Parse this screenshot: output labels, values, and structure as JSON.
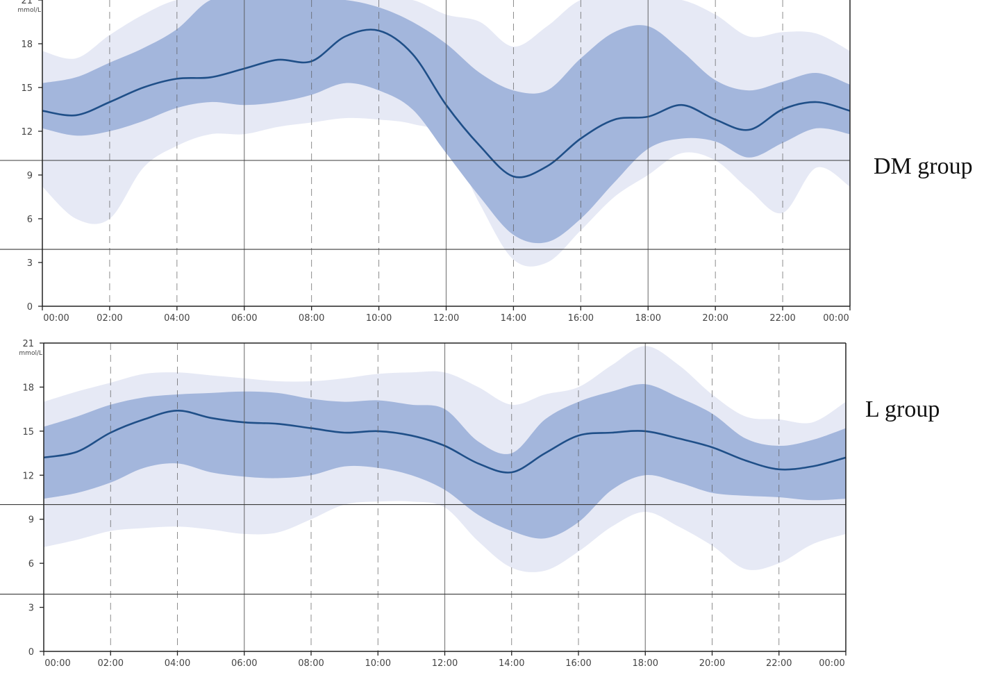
{
  "colors": {
    "outer_band": "#e6e9f5",
    "inner_band": "#a3b6dc",
    "median_line": "#1f4f88",
    "target_line": "#3a3a3a",
    "grid_line": "#555555"
  },
  "chart_data": [
    {
      "type": "area",
      "group_label": "DM group",
      "ylabel": "mmol/L",
      "ylim": [
        0,
        21
      ],
      "yticks": [
        "0",
        "3",
        "6",
        "9",
        "12",
        "15",
        "18",
        "21"
      ],
      "xticks": [
        "00:00",
        "02:00",
        "04:00",
        "06:00",
        "08:00",
        "10:00",
        "12:00",
        "14:00",
        "16:00",
        "18:00",
        "20:00",
        "22:00",
        "00:00"
      ],
      "target_range": [
        3.9,
        10
      ],
      "x": [
        0,
        1,
        2,
        3,
        4,
        5,
        6,
        7,
        8,
        9,
        10,
        11,
        12,
        13,
        14,
        15,
        16,
        17,
        18,
        19,
        20,
        21,
        22,
        23,
        24
      ],
      "series": [
        {
          "name": "",
          "role": "outer_low",
          "values": [
            8.2,
            6.0,
            6.0,
            9.5,
            11.0,
            11.8,
            11.8,
            12.3,
            12.6,
            12.9,
            12.8,
            12.5,
            11.5,
            7.0,
            3.2,
            3.0,
            5.2,
            7.5,
            9.0,
            10.5,
            10.0,
            8.0,
            6.4,
            9.5,
            8.2
          ]
        },
        {
          "name": "",
          "role": "inner_low",
          "values": [
            12.2,
            11.7,
            12.0,
            12.7,
            13.6,
            14.0,
            13.8,
            14.0,
            14.5,
            15.3,
            14.8,
            13.5,
            10.5,
            7.5,
            4.9,
            4.4,
            6.0,
            8.5,
            10.8,
            11.5,
            11.3,
            10.2,
            11.2,
            12.2,
            11.8
          ]
        },
        {
          "name": "",
          "role": "median",
          "values": [
            13.4,
            13.1,
            14.0,
            15.0,
            15.6,
            15.7,
            16.3,
            16.9,
            16.8,
            18.5,
            18.9,
            17.3,
            13.8,
            11.0,
            8.9,
            9.6,
            11.5,
            12.8,
            13.0,
            13.8,
            12.8,
            12.1,
            13.5,
            14.0,
            13.4
          ]
        },
        {
          "name": "",
          "role": "inner_high",
          "values": [
            15.3,
            15.7,
            16.7,
            17.7,
            19.0,
            21.0,
            21.0,
            21.0,
            21.0,
            21.0,
            20.5,
            19.5,
            18.0,
            16.0,
            14.8,
            14.8,
            17.0,
            18.8,
            19.2,
            17.5,
            15.5,
            14.8,
            15.4,
            16.0,
            15.2
          ]
        },
        {
          "name": "",
          "role": "outer_high",
          "values": [
            17.5,
            17.0,
            18.6,
            20.0,
            21.0,
            21.0,
            21.0,
            21.0,
            21.0,
            21.0,
            21.0,
            21.0,
            20.0,
            19.5,
            17.8,
            19.2,
            21.0,
            21.0,
            21.0,
            21.0,
            20.0,
            18.5,
            18.8,
            18.7,
            17.5
          ]
        }
      ]
    },
    {
      "type": "area",
      "group_label": "L group",
      "ylabel": "mmol/L",
      "ylim": [
        0,
        21
      ],
      "yticks": [
        "0",
        "3",
        "6",
        "9",
        "12",
        "15",
        "18",
        "21"
      ],
      "xticks": [
        "00:00",
        "02:00",
        "04:00",
        "06:00",
        "08:00",
        "10:00",
        "12:00",
        "14:00",
        "16:00",
        "18:00",
        "20:00",
        "22:00",
        "00:00"
      ],
      "target_range": [
        3.9,
        10
      ],
      "x": [
        0,
        1,
        2,
        3,
        4,
        5,
        6,
        7,
        8,
        9,
        10,
        11,
        12,
        13,
        14,
        15,
        16,
        17,
        18,
        19,
        20,
        21,
        22,
        23,
        24
      ],
      "series": [
        {
          "name": "",
          "role": "outer_low",
          "values": [
            7.1,
            7.6,
            8.2,
            8.4,
            8.5,
            8.3,
            8.0,
            8.1,
            9.0,
            10.0,
            10.2,
            10.2,
            9.8,
            7.5,
            5.7,
            5.5,
            6.8,
            8.5,
            9.5,
            8.5,
            7.2,
            5.6,
            6.0,
            7.3,
            8.0
          ]
        },
        {
          "name": "",
          "role": "inner_low",
          "values": [
            10.4,
            10.8,
            11.5,
            12.5,
            12.8,
            12.2,
            11.9,
            11.8,
            12.0,
            12.6,
            12.5,
            12.0,
            11.0,
            9.3,
            8.2,
            7.7,
            8.8,
            11.0,
            12.0,
            11.5,
            10.8,
            10.6,
            10.5,
            10.3,
            10.4
          ]
        },
        {
          "name": "",
          "role": "median",
          "values": [
            13.2,
            13.6,
            14.9,
            15.8,
            16.4,
            15.9,
            15.6,
            15.5,
            15.2,
            14.9,
            15.0,
            14.7,
            14.0,
            12.8,
            12.2,
            13.5,
            14.7,
            14.9,
            15.0,
            14.5,
            13.9,
            13.0,
            12.4,
            12.6,
            13.2
          ]
        },
        {
          "name": "",
          "role": "inner_high",
          "values": [
            15.3,
            16.0,
            16.8,
            17.3,
            17.5,
            17.6,
            17.7,
            17.6,
            17.2,
            17.0,
            17.1,
            16.8,
            16.5,
            14.3,
            13.5,
            15.8,
            17.0,
            17.7,
            18.2,
            17.3,
            16.2,
            14.5,
            14.0,
            14.4,
            15.2
          ]
        },
        {
          "name": "",
          "role": "outer_high",
          "values": [
            17.0,
            17.7,
            18.3,
            18.9,
            19.0,
            18.8,
            18.6,
            18.4,
            18.4,
            18.6,
            18.9,
            19.0,
            19.0,
            18.0,
            16.8,
            17.5,
            18.0,
            19.5,
            20.8,
            19.5,
            17.5,
            16.0,
            15.8,
            15.6,
            17.0
          ]
        }
      ]
    }
  ]
}
